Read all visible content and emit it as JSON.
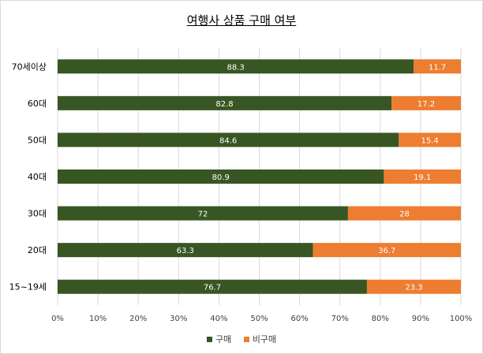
{
  "chart_data": {
    "type": "bar",
    "orientation": "horizontal",
    "stacked": true,
    "title": "여행사 상품 구매 여부",
    "categories": [
      "70세이상",
      "60대",
      "50대",
      "40대",
      "30대",
      "20대",
      "15~19세"
    ],
    "series": [
      {
        "name": "구매",
        "color": "#375623",
        "values": [
          88.3,
          82.8,
          84.6,
          80.9,
          72,
          63.3,
          76.7
        ]
      },
      {
        "name": "비구매",
        "color": "#ed7d31",
        "values": [
          11.7,
          17.2,
          15.4,
          19.1,
          28,
          36.7,
          23.3
        ]
      }
    ],
    "xticks": [
      "0%",
      "10%",
      "20%",
      "30%",
      "40%",
      "50%",
      "60%",
      "70%",
      "80%",
      "90%",
      "100%"
    ],
    "xlim": [
      0,
      100
    ],
    "grid": true,
    "legend": "bottom"
  }
}
